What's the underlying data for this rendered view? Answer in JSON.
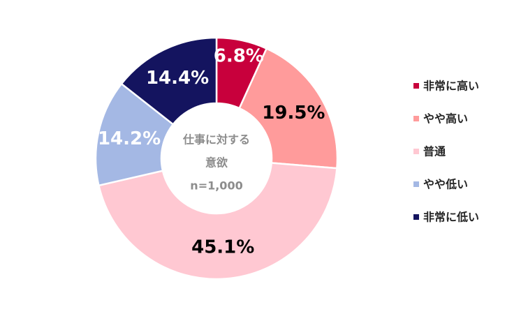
{
  "chart_data": {
    "type": "pie",
    "variant": "donut",
    "categories": [
      "非常に高い",
      "やや高い",
      "普通",
      "やや低い",
      "非常に低い"
    ],
    "values": [
      6.8,
      19.5,
      45.1,
      14.2,
      14.4
    ],
    "value_labels": [
      "6.8%",
      "19.5%",
      "45.1%",
      "14.2%",
      "14.4%"
    ],
    "colors": [
      "#c8003c",
      "#ff9b9b",
      "#ffc8d2",
      "#a4b8e4",
      "#14145f"
    ],
    "label_colors": [
      "#ffffff",
      "#000000",
      "#000000",
      "#ffffff",
      "#ffffff"
    ],
    "center_text": [
      "仕事に対する",
      "意欲",
      "n=1,000"
    ],
    "legend": {
      "position": "right",
      "entries": [
        "非常に高い",
        "やや高い",
        "普通",
        "やや低い",
        "非常に低い"
      ]
    }
  }
}
